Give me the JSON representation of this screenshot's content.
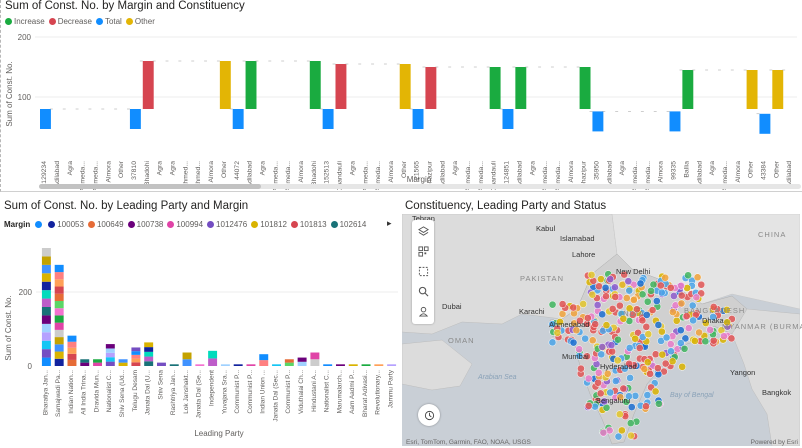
{
  "waterfall": {
    "title": "Sum of Const. No. by Margin and Constituency",
    "legend": [
      {
        "label": "Increase",
        "color": "#1aab40"
      },
      {
        "label": "Decrease",
        "color": "#d64550"
      },
      {
        "label": "Total",
        "color": "#118dff"
      },
      {
        "label": "Other",
        "color": "#e3b505"
      }
    ],
    "y_axis_title": "Sum of Const. No.",
    "x_axis_title": "Margin",
    "y_ticks": [
      "200",
      "100"
    ]
  },
  "bar": {
    "title": "Sum of Const. No. by Leading Party and Margin",
    "legend_title": "Margin",
    "legend": [
      {
        "label": "",
        "color": "#118dff"
      },
      {
        "label": "100053",
        "color": "#12239e"
      },
      {
        "label": "100649",
        "color": "#e66c37"
      },
      {
        "label": "100738",
        "color": "#6b007b"
      },
      {
        "label": "100994",
        "color": "#e044a7"
      },
      {
        "label": "1012476",
        "color": "#744ec2"
      },
      {
        "label": "101812",
        "color": "#d9b300"
      },
      {
        "label": "101813",
        "color": "#d64550"
      },
      {
        "label": "102614",
        "color": "#197278"
      }
    ],
    "legend_more": "▸",
    "y_axis_title": "Sum of Const. No.",
    "x_axis_title": "Leading Party",
    "y_ticks": [
      "200",
      "0"
    ]
  },
  "map": {
    "title": "Constituency, Leading Party and Status",
    "attribution": "Esri, TomTom, Garmin, FAO, NOAA, USGS",
    "powered_by": "Powered by Esri",
    "labels": {
      "tehran": "Tehran",
      "kabul": "Kabul",
      "islamabad": "Islamabad",
      "lahore": "Lahore",
      "pakistan": "PAKISTAN",
      "karachi": "Karachi",
      "dubai": "Dubai",
      "oman": "OMAN",
      "ahmedabad": "Ahmedabad",
      "new_delhi": "New Delhi",
      "india": "INDIA",
      "dhaka": "Dhaka",
      "bangladesh": "BANGLADESH",
      "myanmar": "MYANMAR (BURMA)",
      "mumbai": "Mumbai",
      "hyderabad": "Hyderabad",
      "bengaluru": "Bengaluru",
      "arabian_sea": "Arabian Sea",
      "bay_of_bengal": "Bay of Bengal",
      "china": "CHINA",
      "yangon": "Yangon",
      "bangkok": "Bangkok"
    }
  },
  "chart_data": [
    {
      "type": "bar",
      "subtype": "waterfall",
      "title": "Sum of Const. No. by Margin and Constituency",
      "ylabel": "Sum of Const. No.",
      "xlabel": "Margin",
      "ylim": [
        0,
        200
      ],
      "legend": [
        "Increase",
        "Decrease",
        "Total",
        "Other"
      ],
      "categories": [
        "129234",
        "Adilabad",
        "Agra",
        "Ahmeda...",
        "Ahmeda...",
        "Almora",
        "Other",
        "37810",
        "Bhadohi",
        "Agra",
        "Agra",
        "Ahmed...",
        "Ahmed...",
        "Almora",
        "Other",
        "44072",
        "Adilabad",
        "Agra",
        "Ahmeda...",
        "Ahmeda...",
        "Almora",
        "Bhadohi",
        "152513",
        "Chandauli",
        "Agra",
        "Ahmeda...",
        "Ahmeda...",
        "Almora",
        "Other",
        "21565",
        "Ghazipur",
        "Adilabad",
        "Agra",
        "Ahmeda...",
        "Ahmeda...",
        "Chandauli",
        "124851",
        "Adilabad",
        "Agra",
        "Ahmeda...",
        "Ahmeda...",
        "Almora",
        "Ghazipur",
        "35950",
        "Adilabad",
        "Agra",
        "Ahmeda...",
        "Ahmeda...",
        "Almora",
        "99335",
        "Ballia",
        "Adilabad",
        "Agra",
        "Ahmeda...",
        "Almora",
        "Other",
        "43384",
        "Other",
        "Adilabad"
      ],
      "values": [
        80,
        0,
        0,
        0,
        0,
        0,
        0,
        80,
        160,
        0,
        0,
        0,
        0,
        0,
        160,
        80,
        160,
        0,
        0,
        0,
        0,
        160,
        80,
        155,
        0,
        0,
        0,
        0,
        155,
        80,
        150,
        0,
        0,
        0,
        0,
        150,
        80,
        150,
        0,
        0,
        0,
        0,
        150,
        76,
        0,
        0,
        0,
        0,
        0,
        76,
        145,
        0,
        0,
        0,
        0,
        145,
        72,
        145,
        0
      ]
    },
    {
      "type": "bar",
      "subtype": "stacked",
      "title": "Sum of Const. No. by Leading Party and Margin",
      "ylabel": "Sum of Const. No.",
      "xlabel": "Leading Party",
      "ylim": [
        0,
        400
      ],
      "categories": [
        "Bharatiya Jan...",
        "Samajwadi Pa...",
        "Indian Nation...",
        "All India Trina...",
        "Dravida Mun...",
        "Nationalist C...",
        "Shiv Sena (Ud...",
        "Telugu Desam",
        "Janata Dal (U...",
        "Shiv Sena",
        "Rashtriya Jan...",
        "Lok Janshakt...",
        "Janata Dal (Se...",
        "Independent",
        "Yuvajana Sra...",
        "Communist P...",
        "Communist P...",
        "Indian Union ...",
        "Janata Dal (Sec...",
        "Communist P...",
        "Viduthalai Ch...",
        "Hindustani A...",
        "Nationalist C...",
        "Marumalarch...",
        "Aam Aadmi P...",
        "Bharat Adivasi...",
        "Revolutionary...",
        "Jammu Party"
      ],
      "values": [
        350,
        300,
        90,
        20,
        20,
        65,
        20,
        55,
        70,
        10,
        5,
        40,
        5,
        45,
        5,
        5,
        5,
        35,
        5,
        20,
        25,
        40,
        5,
        5,
        5,
        5,
        5,
        5
      ]
    }
  ]
}
